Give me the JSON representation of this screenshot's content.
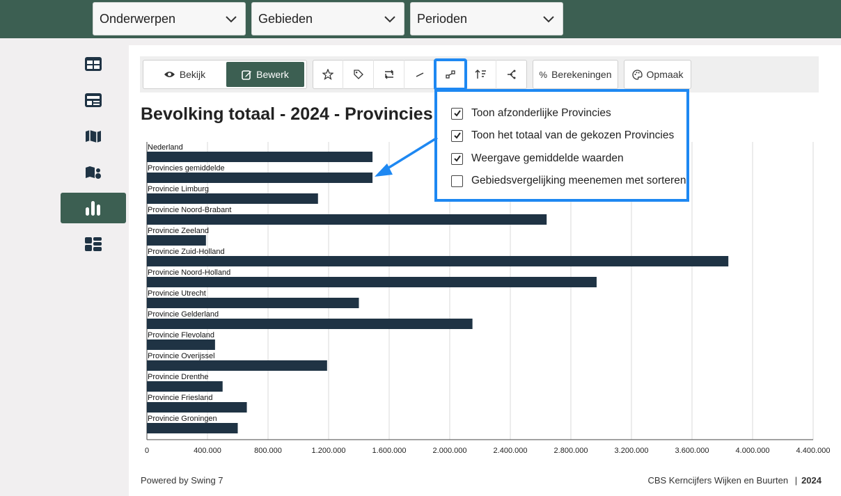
{
  "filters": {
    "topics": "Onderwerpen",
    "areas": "Gebieden",
    "periods": "Perioden"
  },
  "sidebar": {
    "items": [
      {
        "icon": "table-icon",
        "active": false
      },
      {
        "icon": "dashboard-card-icon",
        "active": false
      },
      {
        "icon": "map-icon",
        "active": false
      },
      {
        "icon": "map-symbols-icon",
        "active": false
      },
      {
        "icon": "bar-chart-icon",
        "active": true
      },
      {
        "icon": "tiles-icon",
        "active": false
      }
    ]
  },
  "toolbar": {
    "view_label": "Bekijk",
    "edit_label": "Bewerk",
    "tools": [
      "star-icon",
      "tag-icon",
      "swap-axes-icon",
      "line-icon",
      "comparison-icon",
      "sort-icon",
      "branch-icon"
    ],
    "calculations_label": "Berekeningen",
    "style_label": "Opmaak"
  },
  "popup": {
    "options": [
      {
        "label": "Toon afzonderlijke Provincies",
        "checked": true
      },
      {
        "label": "Toon het totaal van de gekozen Provincies",
        "checked": true
      },
      {
        "label": "Weergave gemiddelde waarden",
        "checked": true
      },
      {
        "label": "Gebiedsvergelijking meenemen met sorteren",
        "checked": false
      }
    ]
  },
  "chart_data": {
    "type": "bar",
    "orientation": "horizontal",
    "title": "Bevolking totaal - 2024 - Provincies",
    "categories": [
      "Nederland",
      "Provincies gemiddelde",
      "Provincie Limburg",
      "Provincie Noord-Brabant",
      "Provincie Zeeland",
      "Provincie Zuid-Holland",
      "Provincie Noord-Holland",
      "Provincie Utrecht",
      "Provincie Gelderland",
      "Provincie Flevoland",
      "Provincie Overijssel",
      "Provincie Drenthe",
      "Provincie Friesland",
      "Provincie Groningen"
    ],
    "values": [
      1490000,
      1490000,
      1130000,
      2640000,
      390000,
      3840000,
      2970000,
      1400000,
      2150000,
      450000,
      1190000,
      500000,
      660000,
      600000
    ],
    "xlim": [
      0,
      4400000
    ],
    "xticks": [
      "0",
      "400.000",
      "800.000",
      "1.200.000",
      "1.600.000",
      "2.000.000",
      "2.400.000",
      "2.800.000",
      "3.200.000",
      "3.600.000",
      "4.000.000",
      "4.400.000"
    ],
    "grid": true,
    "bar_color": "#1f3344"
  },
  "footer": {
    "powered_by": "Powered by Swing 7",
    "source": "CBS Kerncijfers Wijken en Buurten",
    "year": "2024"
  }
}
